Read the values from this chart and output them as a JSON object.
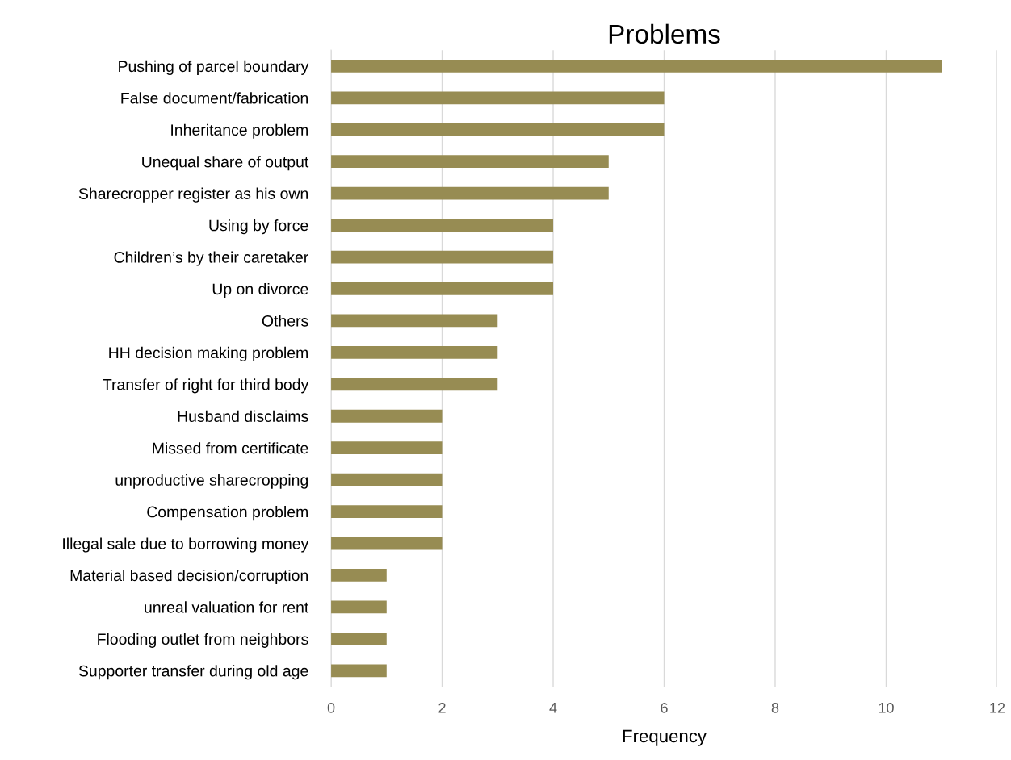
{
  "chart_data": {
    "type": "bar",
    "orientation": "horizontal",
    "title": "Problems",
    "xlabel": "Frequency",
    "categories": [
      "Pushing of parcel boundary",
      "False document/fabrication",
      "Inheritance problem",
      "Unequal share of output",
      "Sharecropper register as his own",
      "Using by force",
      "Children’s by their caretaker",
      "Up on divorce",
      "Others",
      "HH decision making problem",
      "Transfer of right for third body",
      "Husband disclaims",
      "Missed from certificate",
      "unproductive sharecropping",
      "Compensation problem",
      "Illegal sale due to borrowing money",
      "Material based decision/corruption",
      "unreal valuation for rent",
      "Flooding outlet from neighbors",
      "Supporter transfer during old age"
    ],
    "values": [
      11,
      6,
      6,
      5,
      5,
      4,
      4,
      4,
      3,
      3,
      3,
      2,
      2,
      2,
      2,
      2,
      1,
      1,
      1,
      1
    ],
    "color": "#978c53",
    "xlim": [
      0,
      12
    ],
    "xticks": [
      0,
      2,
      4,
      6,
      8,
      10,
      12
    ],
    "grid": "x",
    "legend": false
  }
}
